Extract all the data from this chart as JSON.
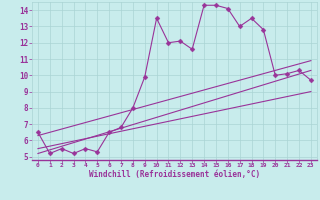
{
  "title": "",
  "xlabel": "Windchill (Refroidissement éolien,°C)",
  "background_color": "#c8ecec",
  "line_color": "#993399",
  "grid_color": "#aad4d4",
  "xlim": [
    -0.5,
    23.5
  ],
  "ylim": [
    4.8,
    14.5
  ],
  "yticks": [
    5,
    6,
    7,
    8,
    9,
    10,
    11,
    12,
    13,
    14
  ],
  "xticks": [
    0,
    1,
    2,
    3,
    4,
    5,
    6,
    7,
    8,
    9,
    10,
    11,
    12,
    13,
    14,
    15,
    16,
    17,
    18,
    19,
    20,
    21,
    22,
    23
  ],
  "series1_x": [
    0,
    1,
    2,
    3,
    4,
    5,
    6,
    7,
    8,
    9,
    10,
    11,
    12,
    13,
    14,
    15,
    16,
    17,
    18,
    19,
    20,
    21,
    22,
    23
  ],
  "series1_y": [
    6.5,
    5.2,
    5.5,
    5.2,
    5.5,
    5.3,
    6.5,
    6.8,
    8.0,
    9.9,
    13.5,
    12.0,
    12.1,
    11.6,
    14.3,
    14.3,
    14.1,
    13.0,
    13.5,
    12.8,
    10.0,
    10.1,
    10.3,
    9.7
  ],
  "series2_x": [
    0,
    23
  ],
  "series2_y": [
    5.2,
    10.3
  ],
  "series3_x": [
    0,
    23
  ],
  "series3_y": [
    5.5,
    9.0
  ],
  "series4_x": [
    0,
    23
  ],
  "series4_y": [
    6.3,
    10.9
  ]
}
